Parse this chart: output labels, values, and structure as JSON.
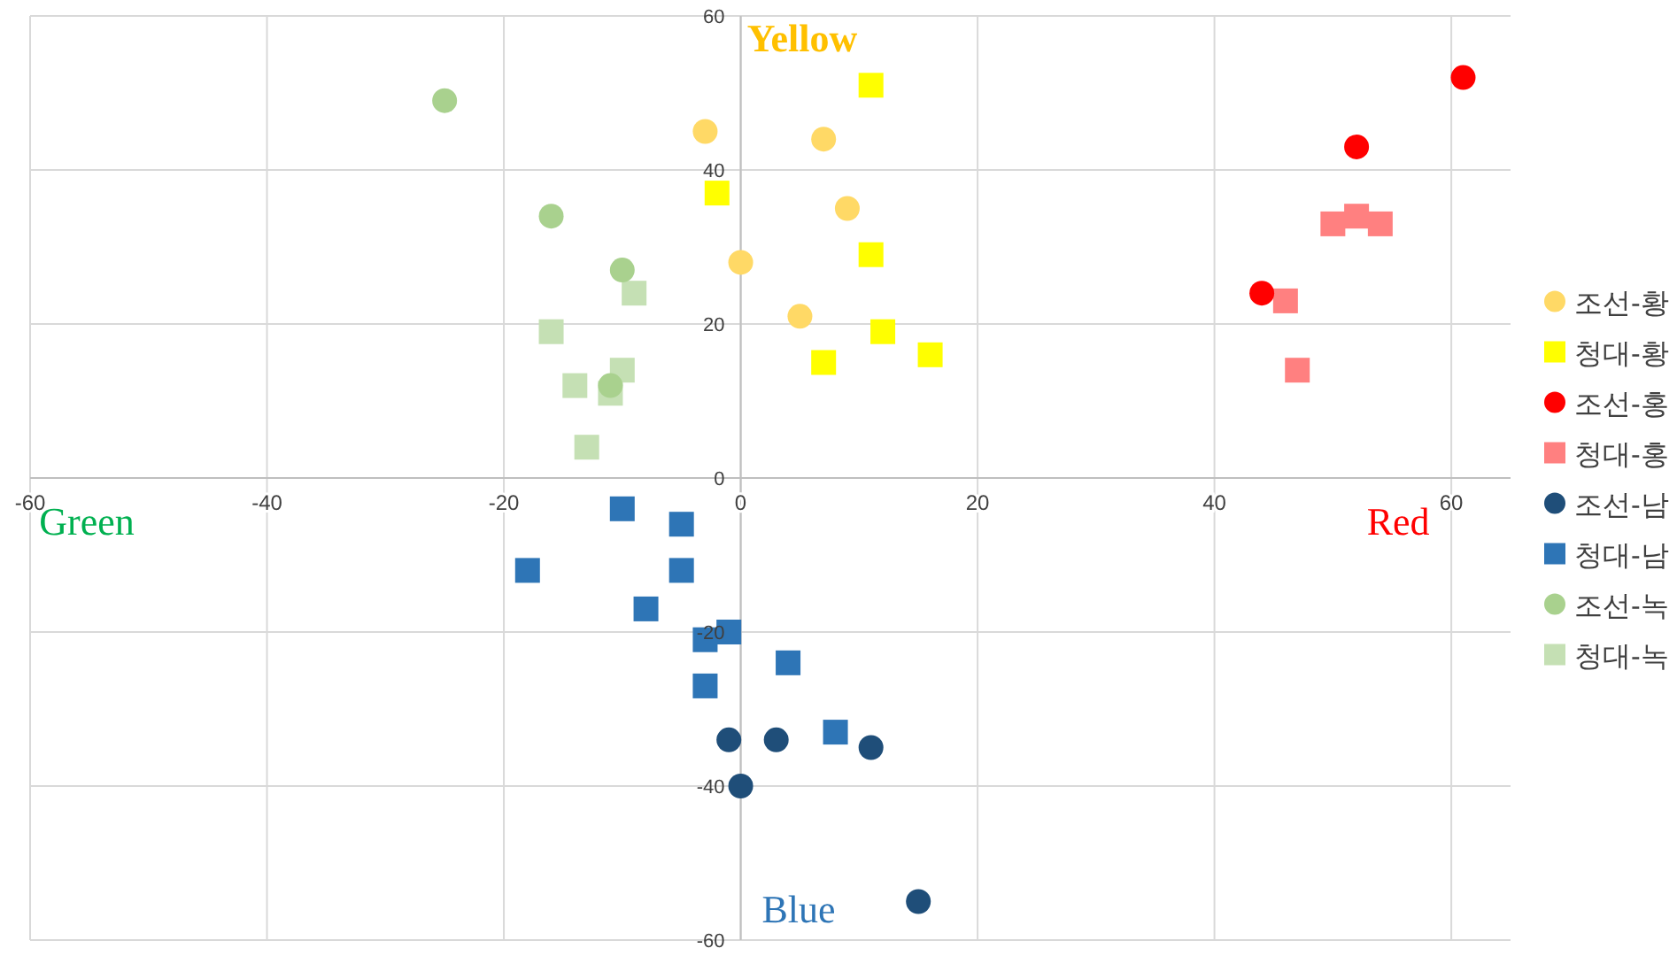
{
  "chart_data": {
    "type": "scatter",
    "xlim": [
      -60,
      65
    ],
    "ylim": [
      -60,
      60
    ],
    "xticks": [
      -60,
      -40,
      -20,
      0,
      20,
      40,
      60
    ],
    "yticks": [
      -60,
      -40,
      -20,
      0,
      20,
      40,
      60
    ],
    "grid": true,
    "legend": "right",
    "annotations": [
      "Yellow",
      "Green",
      "Red",
      "Blue"
    ],
    "series": [
      {
        "name": "조선-황",
        "color": "#ffd966",
        "marker": "circle",
        "x": [
          -3,
          7,
          9,
          0,
          5
        ],
        "values": [
          45,
          44,
          35,
          28,
          21
        ]
      },
      {
        "name": "청대-황",
        "color": "#ffff00",
        "marker": "square",
        "x": [
          11,
          -2,
          11,
          12,
          7,
          16
        ],
        "values": [
          51,
          37,
          29,
          19,
          15,
          16
        ]
      },
      {
        "name": "조선-홍",
        "color": "#ff0000",
        "marker": "circle",
        "x": [
          61,
          52,
          44
        ],
        "values": [
          52,
          43,
          24
        ]
      },
      {
        "name": "청대-홍",
        "color": "#ff8080",
        "marker": "square",
        "x": [
          50,
          52,
          54,
          46,
          47
        ],
        "values": [
          33,
          34,
          33,
          23,
          14
        ]
      },
      {
        "name": "조선-남",
        "color": "#1f4e79",
        "marker": "circle",
        "x": [
          -1,
          3,
          11,
          0,
          15
        ],
        "values": [
          -34,
          -34,
          -35,
          -40,
          -55
        ]
      },
      {
        "name": "청대-남",
        "color": "#2e75b6",
        "marker": "square",
        "x": [
          -10,
          -5,
          -18,
          -5,
          -8,
          -1,
          -3,
          4,
          -3,
          8
        ],
        "values": [
          -4,
          -6,
          -12,
          -12,
          -17,
          -20,
          -21,
          -24,
          -27,
          -33
        ]
      },
      {
        "name": "조선-녹",
        "color": "#a9d18e",
        "marker": "circle",
        "x": [
          -25,
          -16,
          -10,
          -11
        ],
        "values": [
          49,
          34,
          27,
          12
        ]
      },
      {
        "name": "청대-녹",
        "color": "#c5e0b4",
        "marker": "square",
        "x": [
          -9,
          -16,
          -14,
          -10,
          -11,
          -13
        ],
        "values": [
          24,
          19,
          12,
          14,
          11,
          4
        ]
      }
    ]
  }
}
